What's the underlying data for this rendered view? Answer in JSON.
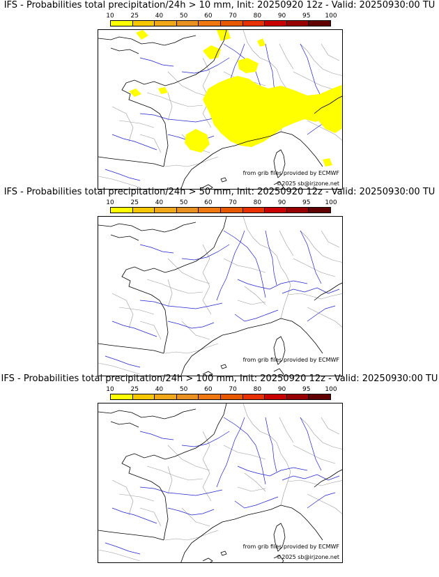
{
  "colorbar": {
    "ticks": [
      "10",
      "25",
      "40",
      "50",
      "60",
      "70",
      "80",
      "90",
      "95",
      "100"
    ],
    "colors": [
      "#ffff00",
      "#f7c800",
      "#f0a818",
      "#e89020",
      "#f07810",
      "#e85800",
      "#e83000",
      "#c80000",
      "#980000",
      "#600000"
    ]
  },
  "panels": [
    {
      "title": "IFS - Probabilities total precipitation/24h > 10 mm, Init: 20250920 12z - Valid: 20250930:00 TU",
      "credit_source": "from grib files provided by ECMWF",
      "credit_copy": "©2025 sb@irjzone.net",
      "has_precip": true
    },
    {
      "title": "IFS - Probabilities total precipitation/24h > 50 mm, Init: 20250920 12z - Valid: 20250930:00 TU",
      "credit_source": "from grib files provided by ECMWF",
      "credit_copy": "",
      "has_precip": false
    },
    {
      "title": "IFS - Probabilities total precipitation/24h > 100 mm, Init: 20250920 12z - Valid: 20250930:00 TU",
      "credit_source": "from grib files provided by ECMWF",
      "credit_copy": "©2025 sb@irjzone.net",
      "has_precip": false
    }
  ],
  "map_style": {
    "coast_color": "#000000",
    "river_color": "#2020d0",
    "border_color": "#9a9a9a",
    "precip_color": "#ffff00"
  }
}
